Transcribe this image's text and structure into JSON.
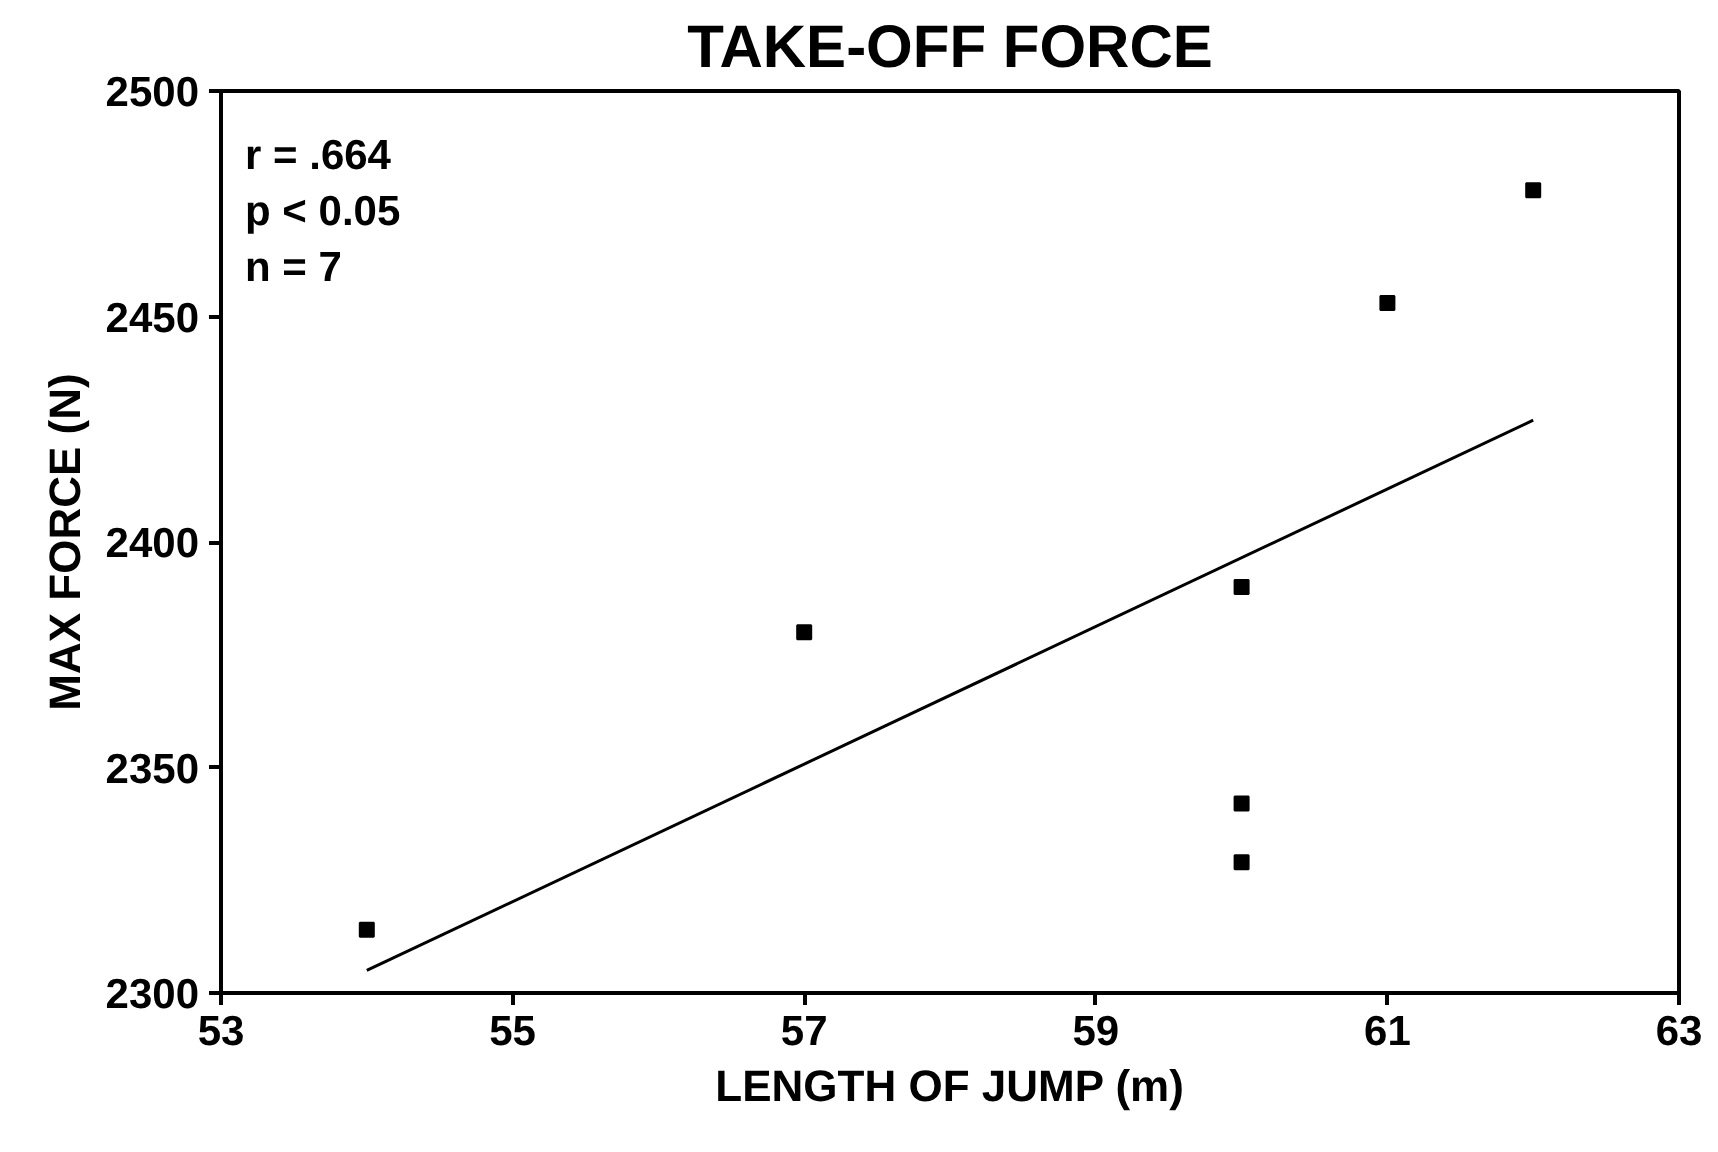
{
  "chart_data": {
    "type": "scatter",
    "title": "TAKE-OFF FORCE",
    "xlabel": "LENGTH OF JUMP (m)",
    "ylabel": "MAX FORCE (N)",
    "series": [
      {
        "color": "#000000",
        "marker": "square",
        "x": [
          54,
          57,
          60,
          60,
          60,
          61,
          62
        ],
        "values": [
          2314,
          2380,
          2390,
          2342,
          2329,
          2453,
          2478
        ]
      },
      {
        "type": "line",
        "color": "#000000",
        "marker": "none",
        "line_style": "solid",
        "x": [
          54,
          62
        ],
        "values": [
          2305,
          2427
        ]
      }
    ],
    "xlim": [
      53,
      63
    ],
    "xticks": [
      53,
      55,
      57,
      59,
      61,
      63
    ],
    "ylim": [
      2300,
      2500
    ],
    "yticks": [
      2300,
      2350,
      2400,
      2450,
      2500
    ],
    "grid": false,
    "annotations": [
      "r = .664",
      "p < 0.05",
      "n = 7"
    ]
  }
}
